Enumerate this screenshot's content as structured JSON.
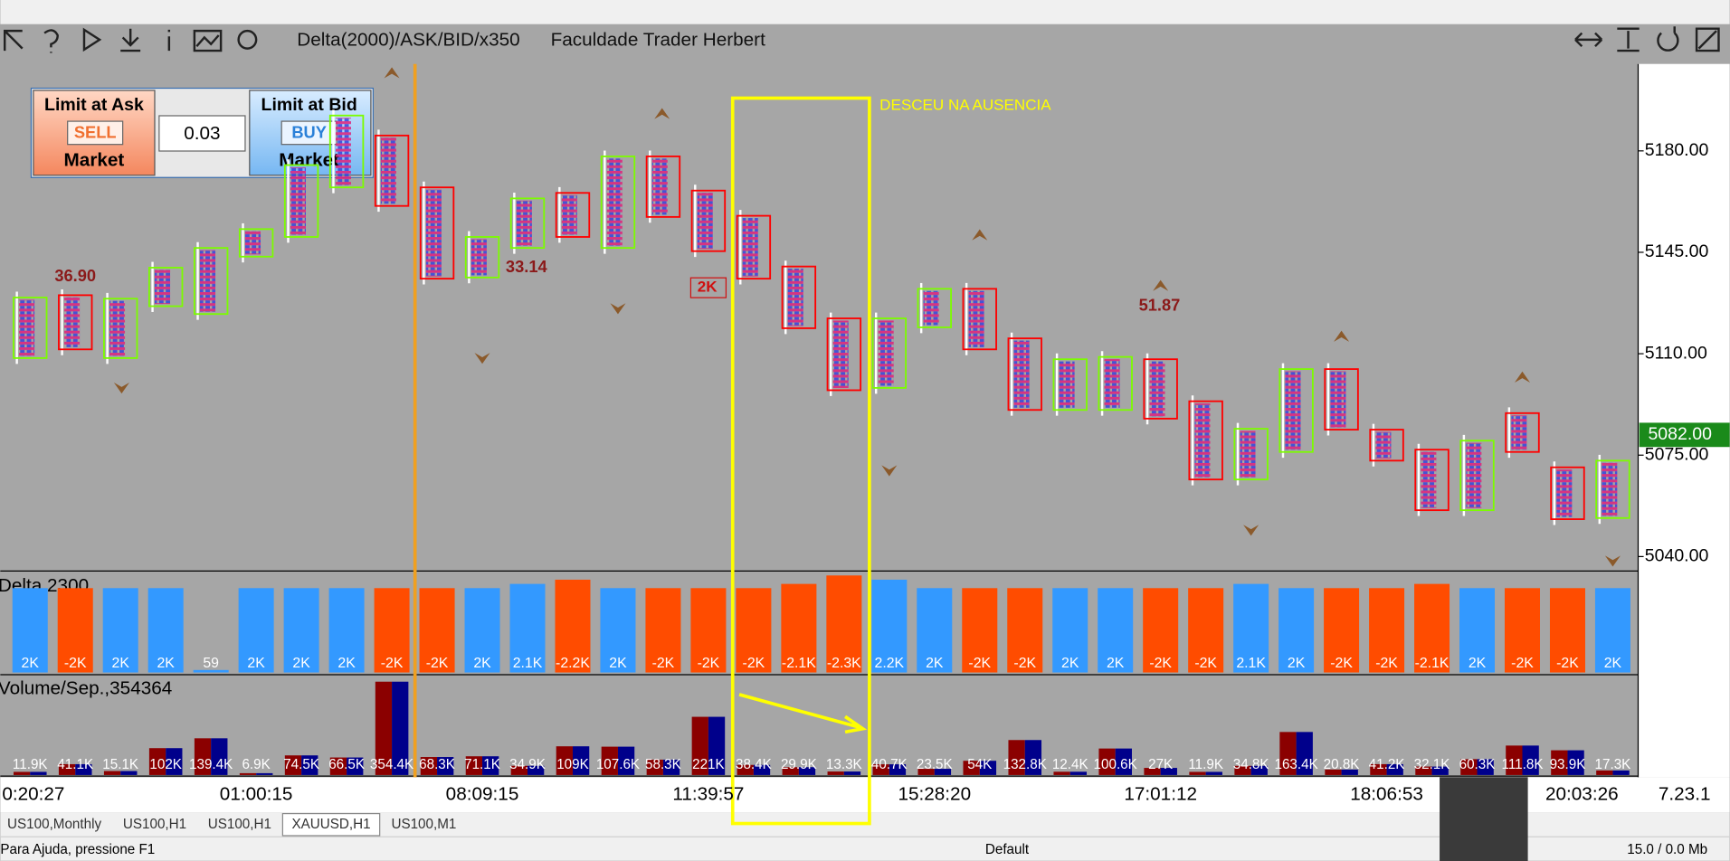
{
  "toolbar": {
    "chart_title": "Delta(2000)/ASK/BID/x350",
    "subtitle": "Faculdade Trader Herbert"
  },
  "trade_panel": {
    "sell_title": "Limit at Ask",
    "sell_button": "SELL",
    "sell_market": "Market",
    "lot": "0.03",
    "buy_title": "Limit at Bid",
    "buy_button": "BUY",
    "buy_market": "Market"
  },
  "chart_data": [
    {
      "type": "candlestick",
      "categories": [
        "0:20:27",
        null,
        null,
        null,
        null,
        "01:00:15",
        null,
        null,
        null,
        null,
        "08:09:15",
        null,
        null,
        null,
        null,
        "11:39:57",
        null,
        null,
        null,
        null,
        "15:28:20",
        null,
        null,
        null,
        null,
        "17:01:12",
        null,
        null,
        null,
        null,
        "18:06:53",
        null,
        null,
        null,
        "20:03:26",
        null
      ],
      "open": [
        5108.5,
        5130.2,
        5108.5,
        5126.4,
        5123.7,
        5143.5,
        5150.3,
        5167.4,
        5185.3,
        5167.4,
        5136.3,
        5146.5,
        5165.5,
        5146.5,
        5178.1,
        5166.3,
        5157.6,
        5140.1,
        5122.2,
        5098.2,
        5119.1,
        5132.4,
        5115.3,
        5090.6,
        5090.6,
        5108.1,
        5093.6,
        5066.6,
        5076.1,
        5104.7,
        5083.8,
        5076.9,
        5056.0,
        5089.5,
        5070.8,
        5053.3
      ],
      "high": [
        5131.4,
        5132.2,
        5131.0,
        5141.7,
        5148.5,
        5155.0,
        5177.1,
        5194.2,
        5187.3,
        5169.4,
        5152.3,
        5165.6,
        5167.5,
        5180.1,
        5180.1,
        5168.3,
        5159.6,
        5142.1,
        5124.2,
        5124.2,
        5134.4,
        5134.4,
        5117.3,
        5110.1,
        5110.9,
        5110.1,
        5095.6,
        5086.1,
        5106.7,
        5106.7,
        5085.8,
        5078.9,
        5082.0,
        5091.5,
        5072.8,
        5075.1
      ],
      "low": [
        5106.5,
        5109.5,
        5106.5,
        5124.4,
        5121.7,
        5141.5,
        5148.3,
        5165.4,
        5159.0,
        5133.9,
        5134.3,
        5144.5,
        5148.3,
        5144.5,
        5155.2,
        5143.4,
        5133.9,
        5116.8,
        5095.4,
        5096.2,
        5117.1,
        5109.5,
        5088.6,
        5088.6,
        5088.6,
        5085.6,
        5064.6,
        5064.6,
        5074.1,
        5081.8,
        5071.1,
        5054.0,
        5054.0,
        5074.1,
        5050.9,
        5051.3
      ],
      "close": [
        5129.4,
        5111.5,
        5129.0,
        5139.7,
        5146.5,
        5153.0,
        5175.1,
        5192.2,
        5161.0,
        5135.9,
        5150.3,
        5163.6,
        5150.3,
        5178.1,
        5157.2,
        5145.4,
        5135.9,
        5118.8,
        5097.4,
        5122.2,
        5132.4,
        5111.5,
        5090.6,
        5108.1,
        5108.9,
        5087.6,
        5066.6,
        5084.1,
        5104.7,
        5083.8,
        5073.1,
        5056.0,
        5080.0,
        5076.1,
        5052.9,
        5073.1
      ],
      "up_color": "#7cfc00",
      "down_color": "#ff0000",
      "ylim": [
        5035,
        5210
      ],
      "yticks": [
        {
          "value": 5040,
          "label": "5040.00"
        },
        {
          "value": 5075,
          "label": "5075.00"
        },
        {
          "value": 5110,
          "label": "5110.00"
        },
        {
          "value": 5145,
          "label": "5145.00"
        },
        {
          "value": 5180,
          "label": "5180.00"
        }
      ],
      "current_price": {
        "value": 5082,
        "label": "5082.00"
      },
      "annotations": [
        "36.90",
        "33.14",
        "51.87",
        "2K",
        "DESCEU NA AUSENCIA"
      ]
    },
    {
      "type": "bar",
      "title": "Delta,2300",
      "values": [
        2000,
        -2000,
        2000,
        2000,
        59,
        2000,
        2000,
        2000,
        -2000,
        -2000,
        2000,
        2100,
        -2200,
        2000,
        -2000,
        -2000,
        -2000,
        -2100,
        -2300,
        2200,
        2000,
        -2000,
        -2000,
        2000,
        2000,
        -2000,
        -2000,
        2100,
        2000,
        -2000,
        -2000,
        -2100,
        2000,
        -2000,
        -2000,
        2000
      ],
      "value_labels": [
        "2K",
        "-2K",
        "2K",
        "2K",
        "59",
        "2K",
        "2K",
        "2K",
        "-2K",
        "-2K",
        "2K",
        "2.1K",
        "-2.2K",
        "2K",
        "-2K",
        "-2K",
        "-2K",
        "-2.1K",
        "-2.3K",
        "2.2K",
        "2K",
        "-2K",
        "-2K",
        "2K",
        "2K",
        "-2K",
        "-2K",
        "2.1K",
        "2K",
        "-2K",
        "-2K",
        "-2.1K",
        "2K",
        "-2K",
        "-2K",
        "2K"
      ],
      "positive_color": "#3399ff",
      "negative_color": "#ff4c00",
      "ylim": [
        0,
        2300
      ]
    },
    {
      "type": "volume",
      "title": "Volume/Sep.,354364",
      "values": [
        11900,
        41100,
        15100,
        102000,
        139400,
        6900,
        74500,
        66500,
        354400,
        68300,
        71100,
        34900,
        109000,
        107600,
        58300,
        221000,
        38400,
        29900,
        13300,
        40700,
        23500,
        54000,
        132800,
        12400,
        100600,
        27000,
        11900,
        34800,
        163400,
        20800,
        41200,
        32100,
        60300,
        111800,
        93900,
        17300
      ],
      "value_labels": [
        "11.9K",
        "41.1K",
        "15.1K",
        "102K",
        "139.4K",
        "6.9K",
        "74.5K",
        "66.5K",
        "354.4K",
        "68.3K",
        "71.1K",
        "34.9K",
        "109K",
        "107.6K",
        "58.3K",
        "221K",
        "38.4K",
        "29.9K",
        "13.3K",
        "40.7K",
        "23.5K",
        "54K",
        "132.8K",
        "12.4K",
        "100.6K",
        "27K",
        "11.9K",
        "34.8K",
        "163.4K",
        "20.8K",
        "41.2K",
        "32.1K",
        "60.3K",
        "111.8K",
        "93.9K",
        "17.3K"
      ],
      "ask_color": "#8b0000",
      "bid_color": "#00008b",
      "ylim": [
        0,
        360000
      ]
    }
  ],
  "axis_corner": "7.23.1",
  "tabs": [
    "US100,Monthly",
    "US100,H1",
    "US100,H1",
    "XAUUSD,H1",
    "US100,M1"
  ],
  "status_bar": {
    "help": "Para Ajuda, pressione F1",
    "profile": "Default",
    "memory": "15.0 / 0.0 Mb"
  }
}
